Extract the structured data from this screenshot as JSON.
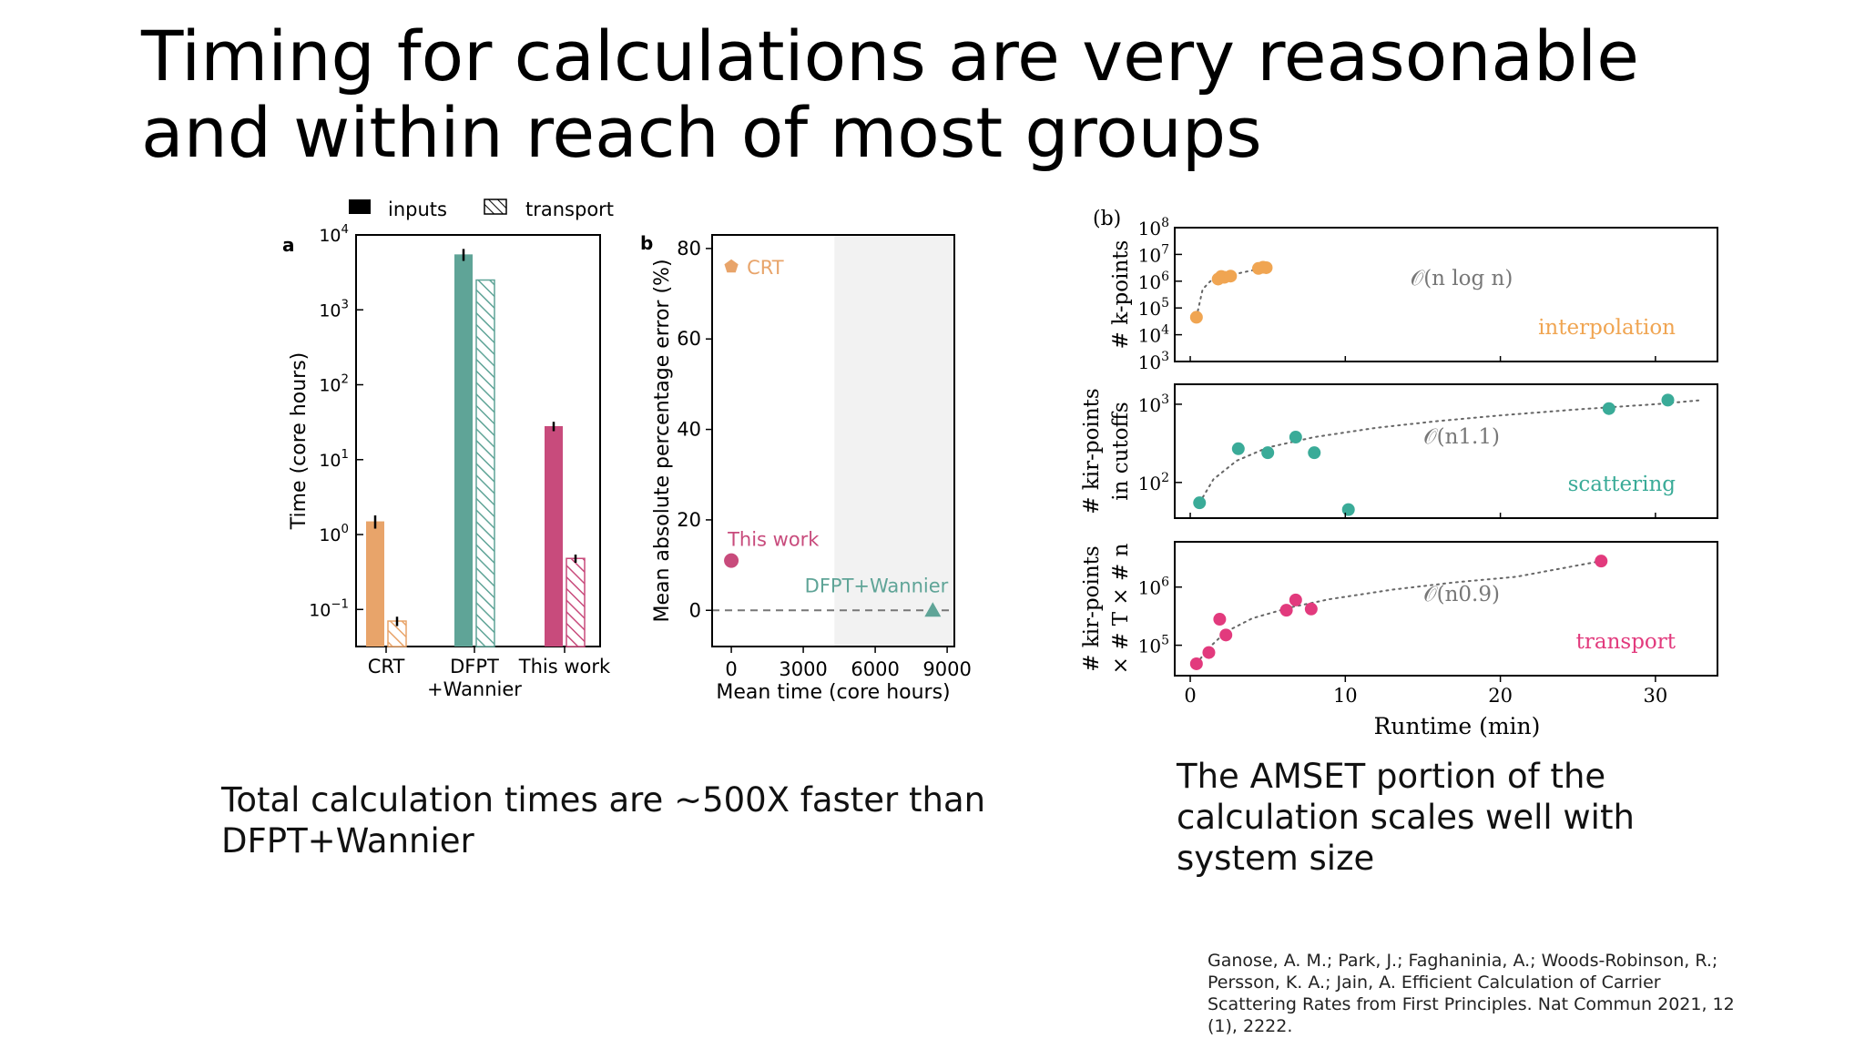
{
  "slide": {
    "title": "Timing for calculations are very reasonable and within reach of most groups",
    "caption_left": "Total calculation times are ~500X faster than DFPT+Wannier",
    "caption_right": "The  AMSET portion of the calculation scales well with system size",
    "reference": "Ganose, A. M.; Park, J.; Faghaninia, A.; Woods-Robinson, R.; Persson, K. A.; Jain, A. Efficient Calculation of Carrier Scattering Rates from First Principles. Nat Commun 2021, 12 (1), 2222."
  },
  "chart_data": [
    {
      "id": "a",
      "panel_label": "a",
      "type": "bar",
      "ylabel": "Time (core hours)",
      "yscale": "log",
      "ylim": [
        0.032,
        10000
      ],
      "yticks": [
        {
          "value": 0.1,
          "base": "10",
          "exp": "−1"
        },
        {
          "value": 1,
          "base": "10",
          "exp": "0"
        },
        {
          "value": 10,
          "base": "10",
          "exp": "1"
        },
        {
          "value": 100,
          "base": "10",
          "exp": "2"
        },
        {
          "value": 1000,
          "base": "10",
          "exp": "3"
        },
        {
          "value": 10000,
          "base": "10",
          "exp": "4"
        }
      ],
      "categories": [
        {
          "lines": [
            "CRT"
          ]
        },
        {
          "lines": [
            "DFPT",
            "+Wannier"
          ]
        },
        {
          "lines": [
            "This work"
          ]
        }
      ],
      "legend": {
        "position": "top",
        "items": [
          {
            "label": "inputs",
            "style": "solid",
            "color": "#000000"
          },
          {
            "label": "transport",
            "style": "hatched",
            "color": "#000000"
          }
        ]
      },
      "series": [
        {
          "name": "inputs",
          "style": "solid",
          "values": [
            1.5,
            5500,
            28
          ],
          "errors": [
            0.3,
            1000,
            4
          ]
        },
        {
          "name": "transport",
          "style": "hatched",
          "values": [
            0.07,
            2500,
            0.48
          ],
          "errors": [
            0.01,
            0,
            0.06
          ]
        }
      ],
      "colors": [
        "#e8a46a",
        "#5fa497",
        "#c84b7c"
      ]
    },
    {
      "id": "b",
      "panel_label": "b",
      "type": "scatter",
      "xlabel": "Mean time (core hours)",
      "ylabel": "Mean absolute percentage error (%)",
      "xlim": [
        -800,
        9300
      ],
      "ylim": [
        -8,
        83
      ],
      "xticks": [
        0,
        3000,
        6000,
        9000
      ],
      "yticks": [
        0,
        20,
        40,
        60,
        80
      ],
      "shaded_from_x": 4300,
      "reference_line_y": 0,
      "points": [
        {
          "label": "CRT",
          "x": 0,
          "y": 76,
          "marker": "pentagon",
          "color": "#e8a46a"
        },
        {
          "label": "This work",
          "x": 0,
          "y": 11,
          "marker": "circle",
          "color": "#c84b7c"
        },
        {
          "label": "DFPT+Wannier",
          "x": 8400,
          "y": 0,
          "marker": "triangle",
          "color": "#5fa497"
        }
      ]
    },
    {
      "id": "b-scaling",
      "panel_label": "(b)",
      "type": "scatter",
      "xlabel": "Runtime (min)",
      "xlim": [
        -1,
        34
      ],
      "xticks": [
        0,
        10,
        20,
        30
      ],
      "subplots": [
        {
          "name": "interpolation",
          "ylabel_lines": [
            "# k-points"
          ],
          "yscale": "log",
          "ylim": [
            1000,
            100000000
          ],
          "yticks": [
            {
              "value": 1000,
              "base": "10",
              "exp": "3"
            },
            {
              "value": 10000,
              "base": "10",
              "exp": "4"
            },
            {
              "value": 100000,
              "base": "10",
              "exp": "5"
            },
            {
              "value": 1000000,
              "base": "10",
              "exp": "6"
            },
            {
              "value": 10000000,
              "base": "10",
              "exp": "7"
            },
            {
              "value": 100000000,
              "base": "10",
              "exp": "8"
            }
          ],
          "fit_label": "𝒪(n log n)",
          "color": "#f0a552",
          "points": [
            [
              0.4,
              45000
            ],
            [
              1.8,
              1200000
            ],
            [
              2.0,
              1500000
            ],
            [
              2.2,
              1400000
            ],
            [
              2.6,
              1550000
            ],
            [
              4.4,
              3000000
            ],
            [
              4.7,
              3300000
            ],
            [
              4.9,
              3200000
            ]
          ],
          "fit": [
            [
              0.4,
              45000
            ],
            [
              0.8,
              500000
            ],
            [
              1.3,
              1000000
            ],
            [
              2.0,
              1400000
            ],
            [
              3.0,
              1900000
            ],
            [
              4.9,
              3300000
            ]
          ]
        },
        {
          "name": "scattering",
          "ylabel_lines": [
            "# kir-points",
            "in cutoffs"
          ],
          "yscale": "log",
          "ylim": [
            35,
            1800
          ],
          "yticks": [
            {
              "value": 100,
              "base": "10",
              "exp": "2"
            },
            {
              "value": 1000,
              "base": "10",
              "exp": "3"
            }
          ],
          "fit_label": "𝒪(n1.1)",
          "color": "#3aab98",
          "points": [
            [
              0.6,
              55
            ],
            [
              3.1,
              270
            ],
            [
              5.0,
              240
            ],
            [
              6.8,
              380
            ],
            [
              8.0,
              240
            ],
            [
              10.2,
              45
            ],
            [
              27.0,
              880
            ],
            [
              30.8,
              1130
            ]
          ],
          "fit": [
            [
              0.6,
              55
            ],
            [
              1.5,
              110
            ],
            [
              3,
              190
            ],
            [
              5,
              280
            ],
            [
              8,
              380
            ],
            [
              12,
              500
            ],
            [
              16,
              610
            ],
            [
              20,
              720
            ],
            [
              25,
              860
            ],
            [
              30,
              1000
            ],
            [
              33,
              1130
            ]
          ]
        },
        {
          "name": "transport",
          "ylabel_lines": [
            "# kir-points",
            "× # T × # n"
          ],
          "yscale": "log",
          "ylim": [
            30000,
            6000000
          ],
          "yticks": [
            {
              "value": 100000,
              "base": "10",
              "exp": "5"
            },
            {
              "value": 1000000,
              "base": "10",
              "exp": "6"
            }
          ],
          "fit_label": "𝒪(n0.9)",
          "color": "#e23a7d",
          "points": [
            [
              0.4,
              48000
            ],
            [
              1.2,
              75000
            ],
            [
              1.9,
              280000
            ],
            [
              2.3,
              150000
            ],
            [
              6.2,
              400000
            ],
            [
              6.8,
              600000
            ],
            [
              7.8,
              420000
            ],
            [
              26.5,
              2800000
            ]
          ],
          "fit": [
            [
              0.4,
              48000
            ],
            [
              1.2,
              90000
            ],
            [
              2.3,
              170000
            ],
            [
              4,
              290000
            ],
            [
              6.5,
              450000
            ],
            [
              9,
              620000
            ],
            [
              13,
              900000
            ],
            [
              17,
              1200000
            ],
            [
              21,
              1500000
            ],
            [
              26.5,
              2800000
            ]
          ]
        }
      ]
    }
  ]
}
